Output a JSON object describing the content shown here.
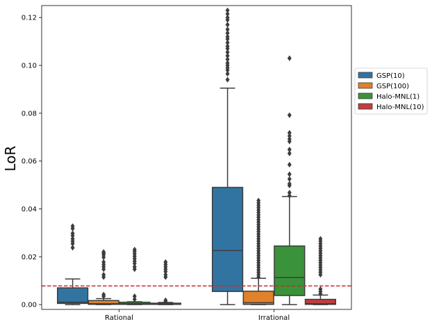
{
  "chart_data": {
    "type": "box",
    "ylabel": "LoR",
    "xlabel": "",
    "ylim": [
      -0.002,
      0.125
    ],
    "yticks": [
      0.0,
      0.02,
      0.04,
      0.06,
      0.08,
      0.1,
      0.12
    ],
    "ytick_labels": [
      "0.00",
      "0.02",
      "0.04",
      "0.06",
      "0.08",
      "0.10",
      "0.12"
    ],
    "categories": [
      "Rational",
      "Irrational"
    ],
    "reference_line": {
      "y": 0.0078,
      "color": "#d62728",
      "style": "dashed"
    },
    "legend": {
      "placement": "outside-right"
    },
    "series": [
      {
        "name": "GSP(10)",
        "color": "#3274a1",
        "boxes": [
          {
            "whisker_low": 0.0,
            "q1": 0.0005,
            "median": 0.001,
            "q3": 0.007,
            "whisker_high": 0.0107,
            "outliers": [
              0.0238,
              0.0255,
              0.0265,
              0.0275,
              0.0288,
              0.0298,
              0.0318,
              0.0328
            ]
          },
          {
            "whisker_low": 0.0,
            "q1": 0.0055,
            "median": 0.0226,
            "q3": 0.049,
            "whisker_high": 0.0905,
            "outliers": [
              0.094,
              0.0965,
              0.098,
              0.099,
              0.1,
              0.101,
              0.1025,
              0.104,
              0.1055,
              0.107,
              0.108,
              0.1095,
              0.111,
              0.112,
              0.1135,
              0.115,
              0.117,
              0.119,
              0.12,
              0.1215,
              0.123
            ]
          }
        ]
      },
      {
        "name": "GSP(100)",
        "color": "#e1812c",
        "boxes": [
          {
            "whisker_low": 0.0,
            "q1": 0.0001,
            "median": 0.0004,
            "q3": 0.0017,
            "whisker_high": 0.0025,
            "outliers": [
              0.0035,
              0.0042,
              0.0115,
              0.0125,
              0.0148,
              0.0158,
              0.0168,
              0.0178,
              0.0198,
              0.0208,
              0.0215,
              0.022
            ]
          },
          {
            "whisker_low": 0.0,
            "q1": 0.0001,
            "median": 0.0008,
            "q3": 0.0056,
            "whisker_high": 0.011,
            "outliers": [
              0.0115,
              0.0125,
              0.0135,
              0.0145,
              0.0155,
              0.0165,
              0.0175,
              0.0185,
              0.0195,
              0.0205,
              0.0215,
              0.0225,
              0.0235,
              0.0245,
              0.0255,
              0.0265,
              0.0275,
              0.0285,
              0.0295,
              0.0305,
              0.0315,
              0.0325,
              0.0335,
              0.0345,
              0.0355,
              0.0365,
              0.0375,
              0.0385,
              0.0395,
              0.0405,
              0.0415,
              0.0425,
              0.0435
            ]
          }
        ]
      },
      {
        "name": "Halo-MNL(1)",
        "color": "#3a923a",
        "boxes": [
          {
            "whisker_low": 0.0,
            "q1": 0.0001,
            "median": 0.0004,
            "q3": 0.001,
            "whisker_high": 0.0012,
            "outliers": [
              0.0022,
              0.0035,
              0.0148,
              0.0158,
              0.0172,
              0.0182,
              0.0192,
              0.0202,
              0.0212,
              0.0222,
              0.023
            ]
          },
          {
            "whisker_low": 0.0,
            "q1": 0.0038,
            "median": 0.0113,
            "q3": 0.0245,
            "whisker_high": 0.0452,
            "outliers": [
              0.0455,
              0.0468,
              0.0498,
              0.0505,
              0.0525,
              0.0545,
              0.0585,
              0.0632,
              0.0648,
              0.0682,
              0.0692,
              0.0705,
              0.0718,
              0.0792,
              0.103
            ]
          }
        ]
      },
      {
        "name": "Halo-MNL(10)",
        "color": "#c03d3e",
        "boxes": [
          {
            "whisker_low": 0.0,
            "q1": 0.0001,
            "median": 0.0002,
            "q3": 0.0006,
            "whisker_high": 0.0009,
            "outliers": [
              0.0012,
              0.0018,
              0.0115,
              0.0125,
              0.0138,
              0.0148,
              0.0158,
              0.0168,
              0.0178
            ]
          },
          {
            "whisker_low": 0.0,
            "q1": 0.0001,
            "median": 0.0004,
            "q3": 0.0022,
            "whisker_high": 0.004,
            "outliers": [
              0.0045,
              0.0055,
              0.0065,
              0.0125,
              0.0135,
              0.0145,
              0.0155,
              0.0165,
              0.0175,
              0.0185,
              0.0195,
              0.0205,
              0.0215,
              0.0225,
              0.0235,
              0.0245,
              0.0255,
              0.0265,
              0.0275
            ]
          }
        ]
      }
    ]
  }
}
